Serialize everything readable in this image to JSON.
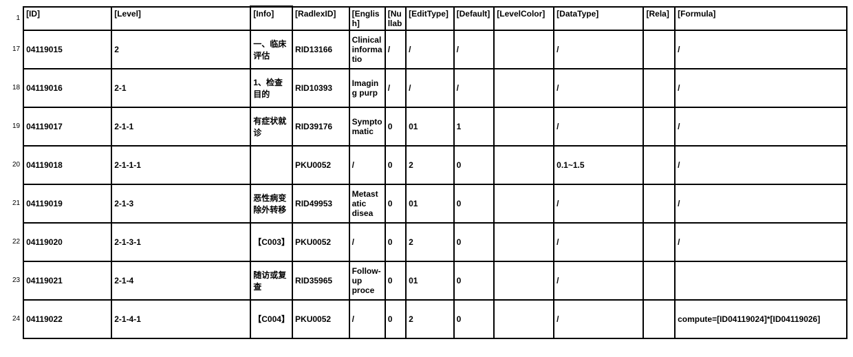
{
  "headers": {
    "row_num": "1",
    "id": "[ID]",
    "level": "[Level]",
    "info": "[Info]",
    "radlex": "[RadlexID]",
    "english": "[English]",
    "nullab": "[Nullab",
    "edit": "[EditType]",
    "default": "[Default]",
    "lvlclr": "[LevelColor]",
    "datatype": "[DataType]",
    "rela": "[Rela]",
    "formula": "[Formula]"
  },
  "rows": [
    {
      "n": "17",
      "id": "04119015",
      "level": "2",
      "info": "一、临床评估",
      "radlex": "RID13166",
      "english": "Clinical informatio",
      "nullab": "/",
      "edit": "/",
      "default": "/",
      "lvlclr": "",
      "datatype": "/",
      "rela": "",
      "formula": "/"
    },
    {
      "n": "18",
      "id": "04119016",
      "level": "2-1",
      "info": "1、检查目的",
      "radlex": "RID10393",
      "english": "Imaging purp",
      "nullab": "/",
      "edit": "/",
      "default": "/",
      "lvlclr": "",
      "datatype": "/",
      "rela": "",
      "formula": "/"
    },
    {
      "n": "19",
      "id": "04119017",
      "level": "2-1-1",
      "info": "有症状就诊",
      "radlex": "RID39176",
      "english": "Symptomatic",
      "nullab": "0",
      "edit": "01",
      "default": "1",
      "lvlclr": "",
      "datatype": "/",
      "rela": "",
      "formula": "/"
    },
    {
      "n": "20",
      "id": "04119018",
      "level": "2-1-1-1",
      "info": "",
      "radlex": "PKU0052",
      "english": "/",
      "nullab": "0",
      "edit": "2",
      "default": "0",
      "lvlclr": "",
      "datatype": "0.1~1.5",
      "rela": "",
      "formula": "/"
    },
    {
      "n": "21",
      "id": "04119019",
      "level": "2-1-3",
      "info": "恶性病变除外转移",
      "radlex": "RID49953",
      "english": "Metastatic disea",
      "nullab": "0",
      "edit": "01",
      "default": "0",
      "lvlclr": "",
      "datatype": "/",
      "rela": "",
      "formula": "/"
    },
    {
      "n": "22",
      "id": "04119020",
      "level": "2-1-3-1",
      "info": "【C003】",
      "radlex": "PKU0052",
      "english": "/",
      "nullab": "0",
      "edit": "2",
      "default": "0",
      "lvlclr": "",
      "datatype": "/",
      "rela": "",
      "formula": "/"
    },
    {
      "n": "23",
      "id": "04119021",
      "level": "2-1-4",
      "info": "随访或复查",
      "radlex": "RID35965",
      "english": "Follow-up proce",
      "nullab": "0",
      "edit": "01",
      "default": "0",
      "lvlclr": "",
      "datatype": "/",
      "rela": "",
      "formula": ""
    },
    {
      "n": "24",
      "id": "04119022",
      "level": "2-1-4-1",
      "info": "【C004】",
      "radlex": "PKU0052",
      "english": "/",
      "nullab": "0",
      "edit": "2",
      "default": "0",
      "lvlclr": "",
      "datatype": "/",
      "rela": "",
      "formula": "compute=[ID04119024]*[ID04119026]"
    }
  ]
}
